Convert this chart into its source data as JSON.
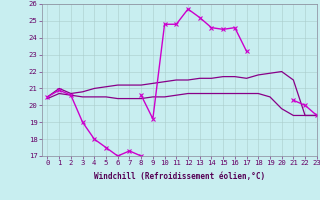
{
  "xlabel": "Windchill (Refroidissement éolien,°C)",
  "x_hours": [
    0,
    1,
    2,
    3,
    4,
    5,
    6,
    7,
    8,
    9,
    10,
    11,
    12,
    13,
    14,
    15,
    16,
    17,
    18,
    19,
    20,
    21,
    22,
    23
  ],
  "line_dip": [
    20.5,
    20.9,
    20.6,
    19.0,
    18.0,
    17.5,
    17.0,
    17.3,
    17.0,
    null,
    null,
    null,
    null,
    null,
    null,
    null,
    null,
    null,
    null,
    null,
    null,
    null,
    null,
    null
  ],
  "line_peak": [
    null,
    null,
    null,
    null,
    null,
    null,
    null,
    null,
    20.6,
    19.2,
    24.8,
    24.8,
    25.7,
    25.2,
    24.6,
    24.5,
    24.6,
    23.2,
    null,
    null,
    null,
    20.3,
    20.0,
    19.4
  ],
  "line_upper": [
    20.5,
    21.0,
    20.7,
    20.8,
    21.0,
    21.1,
    21.2,
    21.2,
    21.2,
    21.3,
    21.4,
    21.5,
    21.5,
    21.6,
    21.6,
    21.7,
    21.7,
    21.6,
    21.8,
    21.9,
    22.0,
    21.5,
    19.4,
    19.4
  ],
  "line_lower": [
    20.4,
    20.7,
    20.6,
    20.5,
    20.5,
    20.5,
    20.4,
    20.4,
    20.4,
    20.5,
    20.5,
    20.6,
    20.7,
    20.7,
    20.7,
    20.7,
    20.7,
    20.7,
    20.7,
    20.5,
    19.8,
    19.4,
    19.4,
    19.4
  ],
  "bg_color": "#c8eef0",
  "color_dip": "#cc00cc",
  "color_peak": "#cc00cc",
  "color_upper": "#880088",
  "color_lower": "#880088",
  "ylim": [
    17,
    26
  ],
  "xlim": [
    -0.5,
    23
  ],
  "yticks": [
    17,
    18,
    19,
    20,
    21,
    22,
    23,
    24,
    25,
    26
  ],
  "xticks": [
    0,
    1,
    2,
    3,
    4,
    5,
    6,
    7,
    8,
    9,
    10,
    11,
    12,
    13,
    14,
    15,
    16,
    17,
    18,
    19,
    20,
    21,
    22,
    23
  ],
  "tick_fontsize": 5.2,
  "label_fontsize": 5.5
}
